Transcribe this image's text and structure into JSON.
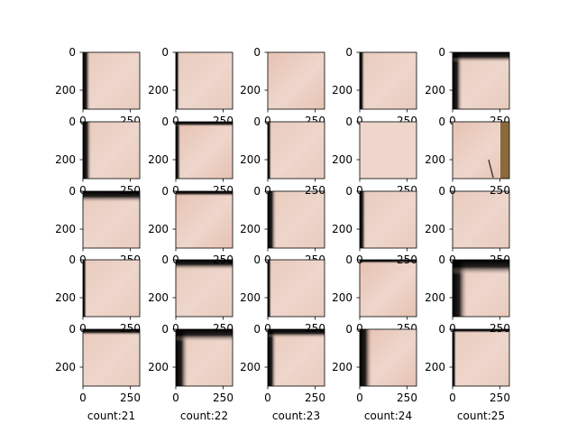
{
  "chart_data": {
    "type": "image-grid",
    "rows": 5,
    "cols": 5,
    "x_ticks": [
      0,
      250
    ],
    "y_ticks": [
      0,
      200
    ],
    "tile_extent": [
      0,
      300
    ],
    "x_labels_shown_on_bottom_row_only": true,
    "colors": {
      "skin_base": "#e8cbbd",
      "skin_light": "#eed6cc",
      "skin_warm": "#e6c2b2",
      "border_black": "#000000",
      "stick_brown": "#8a6a3a"
    },
    "tiles": [
      {
        "edge": "left",
        "edge_strength": 0.06,
        "tone": "skin_base",
        "label": ""
      },
      {
        "edge": "left",
        "edge_strength": 0.03,
        "tone": "skin_base",
        "label": ""
      },
      {
        "edge": "none",
        "edge_strength": 0,
        "tone": "skin_warm",
        "label": ""
      },
      {
        "edge": "left",
        "edge_strength": 0.04,
        "tone": "skin_base",
        "label": ""
      },
      {
        "edge": "top-left",
        "edge_strength": 0.08,
        "tone": "skin_base",
        "label": ""
      },
      {
        "edge": "left",
        "edge_strength": 0.07,
        "tone": "skin_base",
        "label": ""
      },
      {
        "edge": "top-left",
        "edge_strength": 0.04,
        "tone": "skin_warm",
        "label": ""
      },
      {
        "edge": "left",
        "edge_strength": 0.03,
        "tone": "skin_base",
        "label": ""
      },
      {
        "edge": "none",
        "edge_strength": 0,
        "tone": "skin_light",
        "label": ""
      },
      {
        "edge": "right-stick",
        "edge_strength": 0.15,
        "tone": "skin_warm",
        "label": ""
      },
      {
        "edge": "top",
        "edge_strength": 0.09,
        "tone": "skin_base",
        "label": ""
      },
      {
        "edge": "top",
        "edge_strength": 0.04,
        "tone": "skin_warm",
        "label": ""
      },
      {
        "edge": "left",
        "edge_strength": 0.07,
        "tone": "skin_base",
        "label": ""
      },
      {
        "edge": "left",
        "edge_strength": 0.05,
        "tone": "skin_base",
        "label": ""
      },
      {
        "edge": "none",
        "edge_strength": 0,
        "tone": "skin_base",
        "label": ""
      },
      {
        "edge": "left",
        "edge_strength": 0.03,
        "tone": "skin_base",
        "label": ""
      },
      {
        "edge": "top",
        "edge_strength": 0.08,
        "tone": "skin_base",
        "label": ""
      },
      {
        "edge": "left",
        "edge_strength": 0.03,
        "tone": "skin_base",
        "label": ""
      },
      {
        "edge": "top",
        "edge_strength": 0.03,
        "tone": "skin_warm",
        "label": ""
      },
      {
        "edge": "top-left",
        "edge_strength": 0.12,
        "tone": "skin_base",
        "label": ""
      },
      {
        "edge": "top",
        "edge_strength": 0.05,
        "tone": "skin_base",
        "label": "count:21"
      },
      {
        "edge": "top-left",
        "edge_strength": 0.1,
        "tone": "skin_base",
        "label": "count:22"
      },
      {
        "edge": "top-left",
        "edge_strength": 0.07,
        "tone": "skin_base",
        "label": "count:23"
      },
      {
        "edge": "left",
        "edge_strength": 0.1,
        "tone": "skin_warm",
        "label": "count:24"
      },
      {
        "edge": "top-left",
        "edge_strength": 0.03,
        "tone": "skin_base",
        "label": "count:25"
      }
    ]
  }
}
